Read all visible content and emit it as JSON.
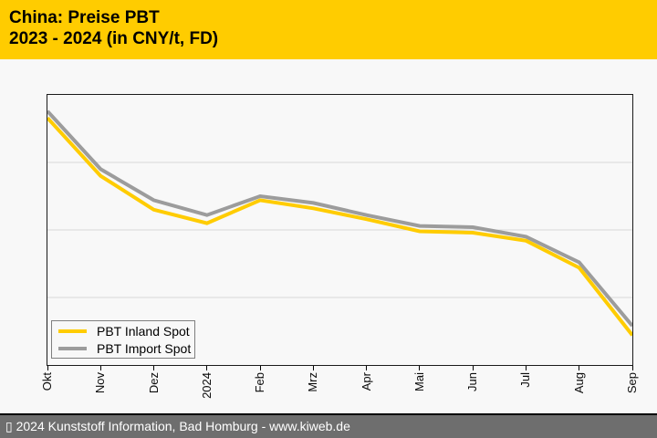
{
  "header": {
    "title_line1": "China: Preise PBT",
    "title_line2": "2023 - 2024 (in CNY/t, FD)"
  },
  "chart_data": {
    "type": "line",
    "title": "China: Preise PBT 2023 - 2024 (in CNY/t, FD)",
    "categories": [
      "Okt",
      "Nov",
      "Dez",
      "2024",
      "Feb",
      "Mrz",
      "Apr",
      "Mai",
      "Jun",
      "Jul",
      "Aug",
      "Sep"
    ],
    "series": [
      {
        "name": "PBT Inland Spot",
        "color": "#FFCC00",
        "values": [
          91.5,
          70,
          57.5,
          52.5,
          61,
          58,
          54,
          49.5,
          49,
          46,
          36,
          11
        ]
      },
      {
        "name": "PBT Import Spot",
        "color": "#9C9C9C",
        "values": [
          94,
          72.5,
          61,
          55.5,
          62.5,
          60,
          55.5,
          51.5,
          51,
          47.5,
          38,
          14.5
        ]
      }
    ],
    "xlabel": "",
    "ylabel": "",
    "ylim": [
      0,
      100
    ],
    "y_tick_labels_visible": false,
    "value_scale_note": "y-axis carries no labels in source; values are percent of plot height",
    "grid": "horizontal",
    "gridline_values": [
      25,
      50,
      75
    ],
    "legend_position": "bottom-left",
    "x_labels_rotated_degrees": -90
  },
  "colors": {
    "header_background": "#FFCC00",
    "page_background": "#F8F8F8",
    "inland_line": "#FFCC00",
    "import_line": "#9C9C9C",
    "gridline": "#D9D9D9",
    "axis": "#000000",
    "legend_border": "#7F7F7F",
    "footer_background": "#6E6E6E",
    "footer_text": "#FFFFFF"
  },
  "footer": {
    "text": "▯ 2024 Kunststoff Information, Bad Homburg - www.kiweb.de"
  }
}
